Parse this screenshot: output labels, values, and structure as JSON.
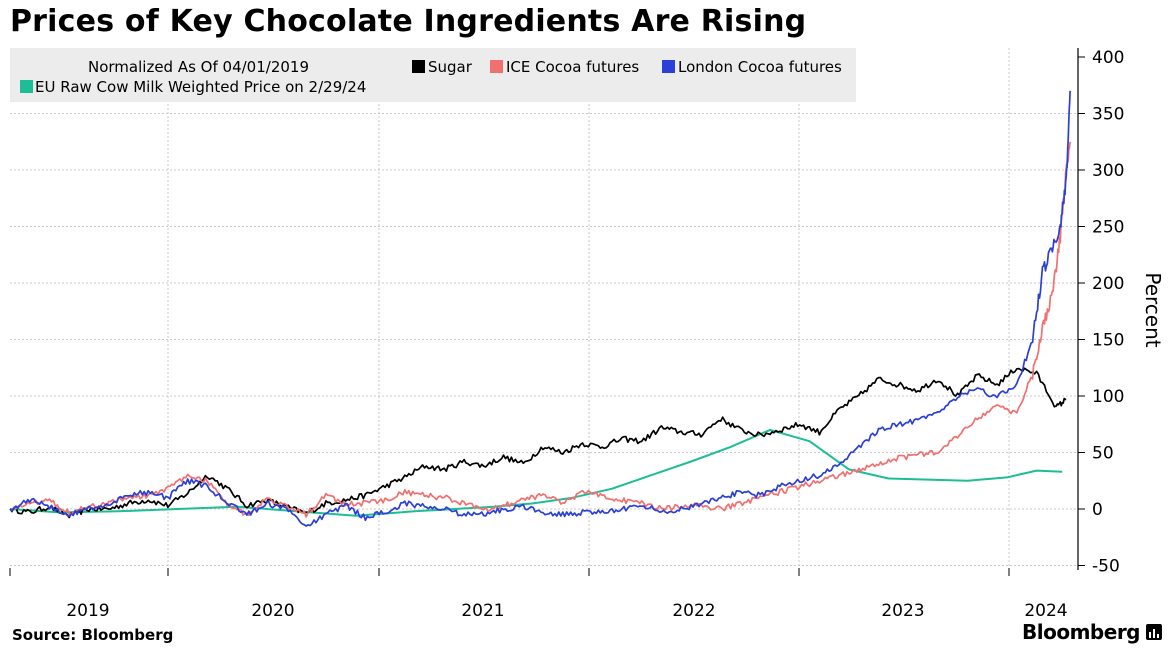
{
  "chart_data": {
    "type": "line",
    "title": "Prices of Key Chocolate Ingredients Are Rising",
    "legend_header": "Normalized As Of 04/01/2019",
    "ylabel": "Percent",
    "xlabel": "",
    "ylim": [
      -50,
      400
    ],
    "y_ticks": [
      400,
      350,
      300,
      250,
      200,
      150,
      100,
      50,
      0,
      -50
    ],
    "x_range": [
      2018.75,
      2024.17
    ],
    "x_ticks": [
      {
        "label": "2019",
        "pos": 2019.0,
        "boundary": 2019.5
      },
      {
        "label": "2020",
        "pos": 2020.0,
        "boundary": 2020.0
      },
      {
        "label": "2021",
        "pos": 2021.0,
        "boundary": 2021.0
      },
      {
        "label": "2022",
        "pos": 2022.0,
        "boundary": 2022.0
      },
      {
        "label": "2023",
        "pos": 2023.0,
        "boundary": 2023.0
      },
      {
        "label": "2024",
        "pos": 2024.0,
        "boundary": 2024.0
      }
    ],
    "grid": true,
    "legend_position": "top-left",
    "series": [
      {
        "name": "Sugar",
        "color": "#000000",
        "x": [
          2018.75,
          2018.85,
          2018.95,
          2019.05,
          2019.15,
          2019.25,
          2019.35,
          2019.45,
          2019.55,
          2019.65,
          2019.75,
          2019.85,
          2019.95,
          2020.05,
          2020.15,
          2020.25,
          2020.35,
          2020.45,
          2020.55,
          2020.65,
          2020.75,
          2020.85,
          2020.95,
          2021.05,
          2021.15,
          2021.25,
          2021.35,
          2021.45,
          2021.55,
          2021.65,
          2021.75,
          2021.85,
          2021.95,
          2022.05,
          2022.15,
          2022.25,
          2022.35,
          2022.45,
          2022.55,
          2022.65,
          2022.75,
          2022.85,
          2022.95,
          2023.05,
          2023.15,
          2023.25,
          2023.35,
          2023.45,
          2023.55,
          2023.65,
          2023.75,
          2023.85,
          2023.95,
          2024.05,
          2024.1
        ],
        "values": [
          0,
          -3,
          2,
          -6,
          0,
          0,
          5,
          8,
          3,
          14,
          30,
          18,
          3,
          8,
          2,
          -4,
          5,
          8,
          12,
          20,
          28,
          38,
          35,
          42,
          38,
          46,
          40,
          55,
          50,
          58,
          55,
          62,
          60,
          72,
          68,
          66,
          80,
          70,
          65,
          70,
          75,
          68,
          88,
          100,
          115,
          110,
          105,
          115,
          100,
          118,
          110,
          125,
          120,
          90,
          97
        ]
      },
      {
        "name": "ICE Cocoa futures",
        "color": "#f07070",
        "x": [
          2018.75,
          2018.85,
          2018.95,
          2019.05,
          2019.15,
          2019.25,
          2019.35,
          2019.45,
          2019.55,
          2019.65,
          2019.75,
          2019.85,
          2019.95,
          2020.05,
          2020.15,
          2020.25,
          2020.35,
          2020.45,
          2020.55,
          2020.65,
          2020.75,
          2020.85,
          2020.95,
          2021.05,
          2021.15,
          2021.25,
          2021.35,
          2021.45,
          2021.55,
          2021.65,
          2021.75,
          2021.85,
          2021.95,
          2022.05,
          2022.15,
          2022.25,
          2022.35,
          2022.45,
          2022.55,
          2022.65,
          2022.75,
          2022.85,
          2022.95,
          2023.05,
          2023.15,
          2023.25,
          2023.35,
          2023.45,
          2023.55,
          2023.65,
          2023.75,
          2023.85,
          2023.93,
          2023.98,
          2024.03,
          2024.07,
          2024.1,
          2024.12
        ],
        "values": [
          0,
          5,
          8,
          -3,
          2,
          5,
          10,
          12,
          18,
          30,
          25,
          5,
          -5,
          8,
          3,
          -5,
          12,
          5,
          5,
          8,
          15,
          12,
          10,
          5,
          0,
          3,
          8,
          12,
          5,
          15,
          12,
          8,
          5,
          0,
          2,
          3,
          0,
          5,
          10,
          15,
          20,
          25,
          30,
          35,
          40,
          45,
          48,
          50,
          65,
          80,
          90,
          85,
          120,
          160,
          190,
          240,
          300,
          325
        ]
      },
      {
        "name": "London Cocoa futures",
        "color": "#2a3fd8",
        "x": [
          2018.75,
          2018.85,
          2018.95,
          2019.05,
          2019.15,
          2019.25,
          2019.35,
          2019.45,
          2019.55,
          2019.65,
          2019.75,
          2019.85,
          2019.95,
          2020.05,
          2020.15,
          2020.25,
          2020.35,
          2020.45,
          2020.55,
          2020.65,
          2020.75,
          2020.85,
          2020.95,
          2021.05,
          2021.15,
          2021.25,
          2021.35,
          2021.45,
          2021.55,
          2021.65,
          2021.75,
          2021.85,
          2021.95,
          2022.05,
          2022.15,
          2022.25,
          2022.35,
          2022.45,
          2022.55,
          2022.65,
          2022.75,
          2022.85,
          2022.95,
          2023.05,
          2023.15,
          2023.25,
          2023.35,
          2023.45,
          2023.55,
          2023.65,
          2023.75,
          2023.85,
          2023.93,
          2023.98,
          2024.03,
          2024.07,
          2024.1,
          2024.12
        ],
        "values": [
          0,
          8,
          2,
          -5,
          0,
          5,
          12,
          15,
          10,
          25,
          20,
          5,
          -5,
          5,
          0,
          -15,
          -5,
          3,
          -8,
          -3,
          5,
          2,
          0,
          -5,
          -5,
          0,
          2,
          -3,
          -5,
          -3,
          -2,
          0,
          3,
          -2,
          0,
          5,
          10,
          15,
          12,
          20,
          25,
          30,
          40,
          55,
          70,
          75,
          78,
          85,
          100,
          105,
          100,
          110,
          150,
          210,
          230,
          250,
          290,
          370
        ]
      },
      {
        "name": "EU Raw Cow Milk Weighted Price  on 2/29/24",
        "color": "#1dbd96",
        "x": [
          2018.75,
          2019.0,
          2019.3,
          2019.6,
          2019.9,
          2020.2,
          2020.5,
          2020.8,
          2021.0,
          2021.2,
          2021.4,
          2021.6,
          2021.8,
          2022.0,
          2022.2,
          2022.4,
          2022.6,
          2022.8,
          2023.0,
          2023.2,
          2023.4,
          2023.6,
          2023.8,
          2023.95,
          2024.08
        ],
        "values": [
          0,
          -3,
          -2,
          0,
          2,
          -2,
          -6,
          -2,
          0,
          2,
          5,
          10,
          18,
          30,
          42,
          55,
          70,
          60,
          35,
          27,
          26,
          25,
          28,
          34,
          33
        ]
      }
    ]
  },
  "footer": {
    "source": "Source: Bloomberg",
    "brand": "Bloomberg"
  }
}
